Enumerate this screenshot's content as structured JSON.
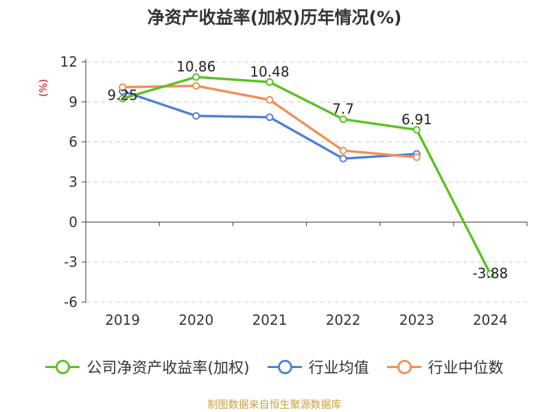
{
  "chart_data": {
    "type": "line",
    "title": "净资产收益率(加权)历年情况(%)",
    "ylabel": "(%)",
    "categories": [
      "2019",
      "2020",
      "2021",
      "2022",
      "2023",
      "2024"
    ],
    "y_ticks": [
      "12",
      "9",
      "6",
      "3",
      "0",
      "-3",
      "-6"
    ],
    "ylim": [
      -6,
      12
    ],
    "grid": true,
    "legend_position": "bottom",
    "series": [
      {
        "name": "公司净资产收益率(加权)",
        "color": "#5ac21f",
        "values": [
          9.25,
          10.86,
          10.48,
          7.7,
          6.91,
          -3.88
        ],
        "labels": [
          "9.25",
          "10.86",
          "10.48",
          "7.7",
          "6.91",
          "-3.88"
        ]
      },
      {
        "name": "行业均值",
        "color": "#4e7fd9",
        "values": [
          9.8,
          7.95,
          7.85,
          4.75,
          5.1,
          null
        ]
      },
      {
        "name": "行业中位数",
        "color": "#f58e52",
        "values": [
          10.1,
          10.2,
          9.15,
          5.35,
          4.85,
          null
        ]
      }
    ]
  },
  "source": "制图数据来自恒生聚源数据库"
}
